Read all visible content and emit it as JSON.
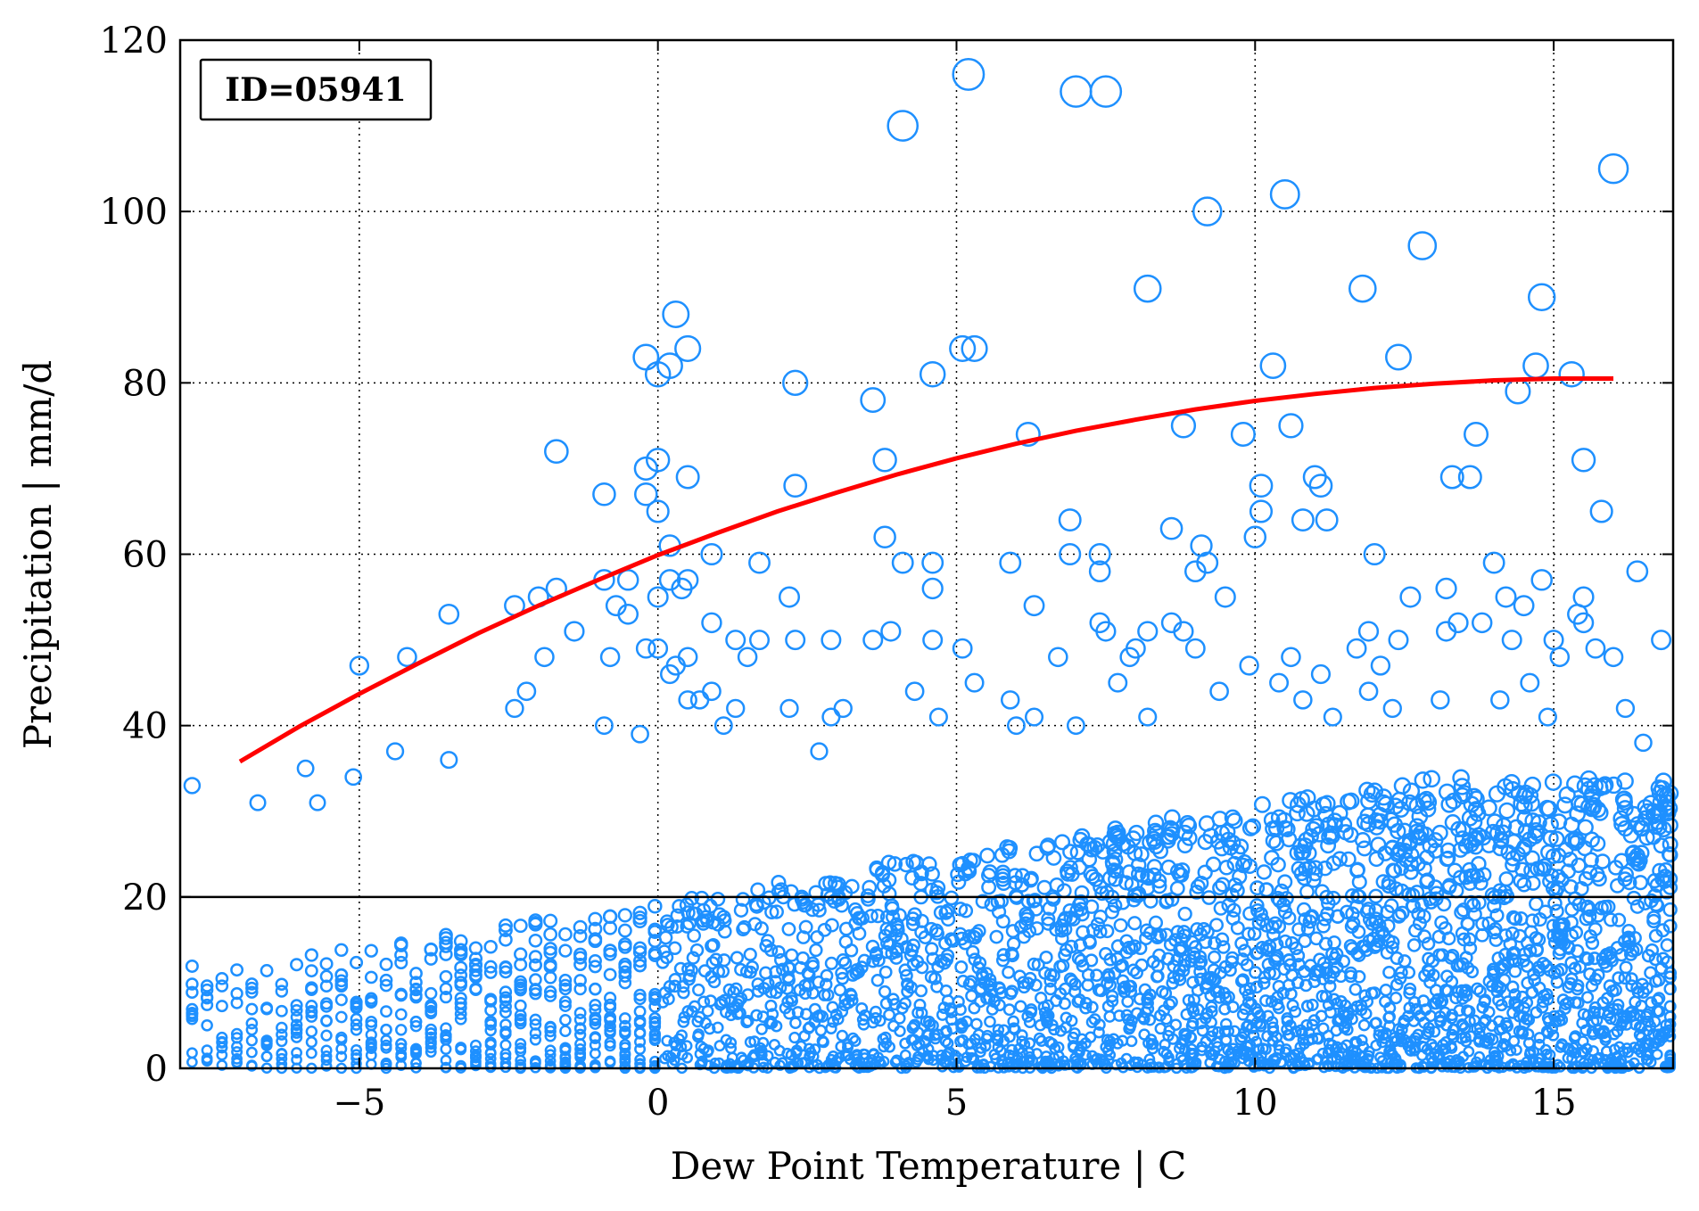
{
  "chart_data": {
    "type": "scatter",
    "title": "",
    "xlabel": "Dew Point Temperature | C",
    "ylabel": "Precipitation | mm/d",
    "xlim": [
      -8,
      17
    ],
    "ylim": [
      0,
      120
    ],
    "x_ticks": [
      -5,
      0,
      5,
      10,
      15
    ],
    "x_tick_labels": [
      "−5",
      "0",
      "5",
      "10",
      "15"
    ],
    "y_ticks": [
      0,
      20,
      40,
      60,
      80,
      100,
      120
    ],
    "y_tick_labels": [
      "0",
      "20",
      "40",
      "60",
      "80",
      "100",
      "120"
    ],
    "grid": true,
    "legend": "none",
    "annotation": "ID=05941",
    "threshold_line": 20,
    "colors": {
      "points": "#1e90ff",
      "fit": "#ff0000",
      "threshold": "#000000"
    },
    "outlier_points": [
      {
        "x": 5.2,
        "y": 116
      },
      {
        "x": 7.0,
        "y": 114
      },
      {
        "x": 7.5,
        "y": 114
      },
      {
        "x": 4.1,
        "y": 110
      },
      {
        "x": 16.0,
        "y": 105
      },
      {
        "x": 10.5,
        "y": 102
      },
      {
        "x": 9.2,
        "y": 100
      },
      {
        "x": 12.8,
        "y": 96
      },
      {
        "x": 8.2,
        "y": 91
      },
      {
        "x": 11.8,
        "y": 91
      },
      {
        "x": 14.8,
        "y": 90
      },
      {
        "x": 0.3,
        "y": 88
      },
      {
        "x": 0.5,
        "y": 84
      },
      {
        "x": 5.1,
        "y": 84
      },
      {
        "x": 5.3,
        "y": 84
      },
      {
        "x": 12.4,
        "y": 83
      },
      {
        "x": -0.2,
        "y": 83
      },
      {
        "x": 0.2,
        "y": 82
      },
      {
        "x": 10.3,
        "y": 82
      },
      {
        "x": 14.7,
        "y": 82
      },
      {
        "x": 0.0,
        "y": 81
      },
      {
        "x": 4.6,
        "y": 81
      },
      {
        "x": 2.3,
        "y": 80
      },
      {
        "x": 15.3,
        "y": 81
      },
      {
        "x": 14.4,
        "y": 79
      },
      {
        "x": 3.6,
        "y": 78
      },
      {
        "x": 10.6,
        "y": 75
      },
      {
        "x": 8.8,
        "y": 75
      },
      {
        "x": 6.2,
        "y": 74
      },
      {
        "x": 9.8,
        "y": 74
      },
      {
        "x": 13.7,
        "y": 74
      },
      {
        "x": -1.7,
        "y": 72
      },
      {
        "x": 3.8,
        "y": 71
      },
      {
        "x": 15.5,
        "y": 71
      },
      {
        "x": 0.0,
        "y": 71
      },
      {
        "x": -0.2,
        "y": 70
      },
      {
        "x": 11.0,
        "y": 69
      },
      {
        "x": 13.3,
        "y": 69
      },
      {
        "x": 13.6,
        "y": 69
      },
      {
        "x": 0.5,
        "y": 69
      },
      {
        "x": 10.1,
        "y": 68
      },
      {
        "x": 11.1,
        "y": 68
      },
      {
        "x": 2.3,
        "y": 68
      },
      {
        "x": -0.2,
        "y": 67
      },
      {
        "x": -0.9,
        "y": 67
      },
      {
        "x": 0.0,
        "y": 65
      },
      {
        "x": 10.1,
        "y": 65
      },
      {
        "x": 15.8,
        "y": 65
      },
      {
        "x": 6.9,
        "y": 64
      },
      {
        "x": 10.8,
        "y": 64
      },
      {
        "x": 11.2,
        "y": 64
      },
      {
        "x": 8.6,
        "y": 63
      },
      {
        "x": 3.8,
        "y": 62
      },
      {
        "x": 10.0,
        "y": 62
      },
      {
        "x": 9.1,
        "y": 61
      },
      {
        "x": 0.2,
        "y": 61
      },
      {
        "x": 7.4,
        "y": 60
      },
      {
        "x": 12.0,
        "y": 60
      },
      {
        "x": 6.9,
        "y": 60
      },
      {
        "x": 0.9,
        "y": 60
      },
      {
        "x": 14.0,
        "y": 59
      },
      {
        "x": 9.2,
        "y": 59
      },
      {
        "x": 4.6,
        "y": 59
      },
      {
        "x": 4.1,
        "y": 59
      },
      {
        "x": 5.9,
        "y": 59
      },
      {
        "x": 1.7,
        "y": 59
      },
      {
        "x": 7.4,
        "y": 58
      },
      {
        "x": 9.0,
        "y": 58
      },
      {
        "x": 16.4,
        "y": 58
      },
      {
        "x": 0.5,
        "y": 57
      },
      {
        "x": 0.2,
        "y": 57
      },
      {
        "x": -0.9,
        "y": 57
      },
      {
        "x": -0.5,
        "y": 57
      },
      {
        "x": 14.8,
        "y": 57
      },
      {
        "x": 13.2,
        "y": 56
      },
      {
        "x": 4.6,
        "y": 56
      },
      {
        "x": 0.4,
        "y": 56
      },
      {
        "x": -1.7,
        "y": 56
      },
      {
        "x": 14.2,
        "y": 55
      },
      {
        "x": 2.2,
        "y": 55
      },
      {
        "x": 12.6,
        "y": 55
      },
      {
        "x": 9.5,
        "y": 55
      },
      {
        "x": 0.0,
        "y": 55
      },
      {
        "x": 15.5,
        "y": 55
      },
      {
        "x": -2.0,
        "y": 55
      },
      {
        "x": -0.7,
        "y": 54
      },
      {
        "x": 6.3,
        "y": 54
      },
      {
        "x": -2.4,
        "y": 54
      },
      {
        "x": 14.5,
        "y": 54
      },
      {
        "x": -0.5,
        "y": 53
      },
      {
        "x": -3.5,
        "y": 53
      },
      {
        "x": 15.4,
        "y": 53
      },
      {
        "x": 7.4,
        "y": 52
      },
      {
        "x": 13.4,
        "y": 52
      },
      {
        "x": 15.5,
        "y": 52
      },
      {
        "x": 0.9,
        "y": 52
      },
      {
        "x": 8.6,
        "y": 52
      },
      {
        "x": 13.8,
        "y": 52
      },
      {
        "x": -1.4,
        "y": 51
      },
      {
        "x": 7.5,
        "y": 51
      },
      {
        "x": 8.2,
        "y": 51
      },
      {
        "x": 13.2,
        "y": 51
      },
      {
        "x": 11.9,
        "y": 51
      },
      {
        "x": 15.0,
        "y": 50
      },
      {
        "x": 8.8,
        "y": 51
      },
      {
        "x": 1.3,
        "y": 50
      },
      {
        "x": 1.7,
        "y": 50
      },
      {
        "x": 2.3,
        "y": 50
      },
      {
        "x": 3.9,
        "y": 51
      },
      {
        "x": 2.9,
        "y": 50
      },
      {
        "x": 3.6,
        "y": 50
      },
      {
        "x": 4.6,
        "y": 50
      },
      {
        "x": 16.8,
        "y": 50
      },
      {
        "x": 12.4,
        "y": 50
      },
      {
        "x": 14.3,
        "y": 50
      },
      {
        "x": 11.7,
        "y": 49
      },
      {
        "x": 5.1,
        "y": 49
      },
      {
        "x": 8.0,
        "y": 49
      },
      {
        "x": 9.0,
        "y": 49
      },
      {
        "x": 15.7,
        "y": 49
      },
      {
        "x": 16.0,
        "y": 48
      },
      {
        "x": -0.2,
        "y": 49
      },
      {
        "x": 0.0,
        "y": 49
      },
      {
        "x": -0.8,
        "y": 48
      },
      {
        "x": 6.7,
        "y": 48
      },
      {
        "x": 10.6,
        "y": 48
      },
      {
        "x": -1.9,
        "y": 48
      },
      {
        "x": 1.5,
        "y": 48
      },
      {
        "x": 15.1,
        "y": 48
      },
      {
        "x": 7.9,
        "y": 48
      },
      {
        "x": -4.2,
        "y": 48
      },
      {
        "x": 0.5,
        "y": 48
      },
      {
        "x": 9.9,
        "y": 47
      },
      {
        "x": -5.0,
        "y": 47
      },
      {
        "x": 0.3,
        "y": 47
      },
      {
        "x": 12.1,
        "y": 47
      },
      {
        "x": 0.2,
        "y": 46
      },
      {
        "x": 11.1,
        "y": 46
      },
      {
        "x": 10.4,
        "y": 45
      },
      {
        "x": 5.3,
        "y": 45
      },
      {
        "x": 14.6,
        "y": 45
      },
      {
        "x": 7.7,
        "y": 45
      },
      {
        "x": 0.9,
        "y": 44
      },
      {
        "x": 4.3,
        "y": 44
      },
      {
        "x": -2.2,
        "y": 44
      },
      {
        "x": 9.4,
        "y": 44
      },
      {
        "x": 11.9,
        "y": 44
      },
      {
        "x": 0.7,
        "y": 43
      },
      {
        "x": 5.9,
        "y": 43
      },
      {
        "x": 13.1,
        "y": 43
      },
      {
        "x": 14.1,
        "y": 43
      },
      {
        "x": 10.8,
        "y": 43
      },
      {
        "x": 0.5,
        "y": 43
      },
      {
        "x": 2.2,
        "y": 42
      },
      {
        "x": -2.4,
        "y": 42
      },
      {
        "x": 3.1,
        "y": 42
      },
      {
        "x": 1.3,
        "y": 42
      },
      {
        "x": 16.2,
        "y": 42
      },
      {
        "x": 12.3,
        "y": 42
      },
      {
        "x": 8.2,
        "y": 41
      },
      {
        "x": 4.7,
        "y": 41
      },
      {
        "x": 6.3,
        "y": 41
      },
      {
        "x": 11.3,
        "y": 41
      },
      {
        "x": 14.9,
        "y": 41
      },
      {
        "x": 2.9,
        "y": 41
      },
      {
        "x": 7.0,
        "y": 40
      },
      {
        "x": 1.1,
        "y": 40
      },
      {
        "x": 6.0,
        "y": 40
      },
      {
        "x": -0.9,
        "y": 40
      },
      {
        "x": -0.3,
        "y": 39
      },
      {
        "x": 16.5,
        "y": 38
      },
      {
        "x": 2.7,
        "y": 37
      },
      {
        "x": -5.9,
        "y": 35
      },
      {
        "x": -3.5,
        "y": 36
      },
      {
        "x": -4.4,
        "y": 37
      },
      {
        "x": -7.8,
        "y": 33
      },
      {
        "x": -6.7,
        "y": 31
      },
      {
        "x": -5.7,
        "y": 31
      },
      {
        "x": -5.1,
        "y": 34
      },
      {
        "x": 16.8,
        "y": 26
      },
      {
        "x": 16.9,
        "y": 31
      },
      {
        "x": 16.4,
        "y": 24
      },
      {
        "x": 16.2,
        "y": 28
      }
    ],
    "dense_cloud": {
      "description_note": "",
      "x_range": [
        -8,
        17
      ],
      "y_range": [
        0,
        40
      ]
    },
    "fit_curve": {
      "x": [
        -7,
        -6,
        -5,
        -4,
        -3,
        -2,
        -1,
        0,
        1,
        2,
        3,
        4,
        5,
        6,
        7,
        8,
        9,
        10,
        11,
        12,
        13,
        14,
        15,
        16
      ],
      "y": [
        35.8,
        39.9,
        43.7,
        47.3,
        50.8,
        54.0,
        57.0,
        59.9,
        62.5,
        65.0,
        67.2,
        69.3,
        71.2,
        72.9,
        74.4,
        75.7,
        76.9,
        77.9,
        78.7,
        79.4,
        79.9,
        80.3,
        80.5,
        80.5
      ]
    }
  }
}
